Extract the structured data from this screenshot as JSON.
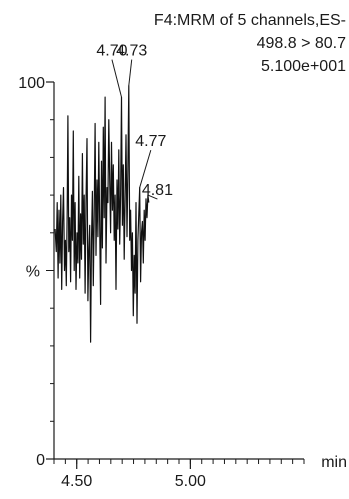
{
  "chart_data": {
    "type": "line",
    "header": {
      "experiment": "F4:MRM of 5 channels,ES-",
      "transition": "498.8 > 80.7",
      "intensity": "5.100e+001"
    },
    "title": "",
    "xlabel": "min",
    "ylabel": "",
    "xlim": [
      4.4,
      5.5
    ],
    "ylim": [
      0,
      100
    ],
    "x_ticks": [
      4.5,
      5.0
    ],
    "x_tick_labels": [
      "4.50",
      "5.00"
    ],
    "y_ticks": [
      0,
      100
    ],
    "y_tick_labels": [
      "0",
      "100"
    ],
    "y_mid_label": "%",
    "grid": false,
    "series": [
      {
        "values": [
          [
            4.405,
            61
          ],
          [
            4.41,
            55
          ],
          [
            4.414,
            68
          ],
          [
            4.418,
            48
          ],
          [
            4.422,
            66
          ],
          [
            4.426,
            52
          ],
          [
            4.43,
            70
          ],
          [
            4.434,
            45
          ],
          [
            4.438,
            63
          ],
          [
            4.442,
            72
          ],
          [
            4.446,
            50
          ],
          [
            4.45,
            58
          ],
          [
            4.454,
            46
          ],
          [
            4.458,
            66
          ],
          [
            4.461,
            91
          ],
          [
            4.465,
            55
          ],
          [
            4.469,
            64
          ],
          [
            4.473,
            47
          ],
          [
            4.477,
            70
          ],
          [
            4.481,
            58
          ],
          [
            4.485,
            87
          ],
          [
            4.489,
            50
          ],
          [
            4.493,
            68
          ],
          [
            4.497,
            45
          ],
          [
            4.501,
            60
          ],
          [
            4.505,
            52
          ],
          [
            4.509,
            75
          ],
          [
            4.513,
            48
          ],
          [
            4.517,
            65
          ],
          [
            4.521,
            53
          ],
          [
            4.525,
            81
          ],
          [
            4.529,
            57
          ],
          [
            4.533,
            70
          ],
          [
            4.537,
            44
          ],
          [
            4.541,
            68
          ],
          [
            4.545,
            85
          ],
          [
            4.549,
            42
          ],
          [
            4.553,
            55
          ],
          [
            4.557,
            62
          ],
          [
            4.561,
            31
          ],
          [
            4.565,
            58
          ],
          [
            4.569,
            71
          ],
          [
            4.573,
            46
          ],
          [
            4.577,
            65
          ],
          [
            4.581,
            89
          ],
          [
            4.585,
            54
          ],
          [
            4.589,
            74
          ],
          [
            4.593,
            59
          ],
          [
            4.597,
            84
          ],
          [
            4.601,
            62
          ],
          [
            4.605,
            41
          ],
          [
            4.609,
            79
          ],
          [
            4.613,
            56
          ],
          [
            4.617,
            88
          ],
          [
            4.621,
            64
          ],
          [
            4.625,
            96
          ],
          [
            4.629,
            52
          ],
          [
            4.633,
            72
          ],
          [
            4.637,
            68
          ],
          [
            4.641,
            90
          ],
          [
            4.645,
            74
          ],
          [
            4.649,
            60
          ],
          [
            4.653,
            84
          ],
          [
            4.657,
            66
          ],
          [
            4.661,
            78
          ],
          [
            4.665,
            58
          ],
          [
            4.669,
            70
          ],
          [
            4.673,
            45
          ],
          [
            4.677,
            74
          ],
          [
            4.681,
            61
          ],
          [
            4.685,
            82
          ],
          [
            4.689,
            57
          ],
          [
            4.693,
            70
          ],
          [
            4.697,
            96
          ],
          [
            4.701,
            62
          ],
          [
            4.705,
            78
          ],
          [
            4.709,
            53
          ],
          [
            4.713,
            69
          ],
          [
            4.717,
            86
          ],
          [
            4.721,
            59
          ],
          [
            4.725,
            77
          ],
          [
            4.729,
            99
          ],
          [
            4.733,
            58
          ],
          [
            4.737,
            66
          ],
          [
            4.741,
            50
          ],
          [
            4.745,
            60
          ],
          [
            4.749,
            38
          ],
          [
            4.753,
            54
          ],
          [
            4.757,
            44
          ],
          [
            4.761,
            68
          ],
          [
            4.765,
            36
          ],
          [
            4.769,
            58
          ],
          [
            4.773,
            65
          ],
          [
            4.777,
            72
          ],
          [
            4.781,
            47
          ],
          [
            4.785,
            60
          ],
          [
            4.789,
            63
          ],
          [
            4.793,
            52
          ],
          [
            4.797,
            66
          ],
          [
            4.801,
            58
          ],
          [
            4.805,
            69
          ],
          [
            4.809,
            64
          ],
          [
            4.813,
            70
          ],
          [
            4.817,
            68
          ]
        ]
      }
    ],
    "peak_labels": [
      {
        "text": "4.70",
        "x": 4.697,
        "y": 96,
        "label_x": 4.655,
        "label_y": 107
      },
      {
        "text": "4.73",
        "x": 4.729,
        "y": 99,
        "label_x": 4.742,
        "label_y": 107
      },
      {
        "text": "4.77",
        "x": 4.777,
        "y": 72,
        "label_x": 4.826,
        "label_y": 83
      },
      {
        "text": "4.81",
        "x": 4.813,
        "y": 70,
        "label_x": 4.855,
        "label_y": 70
      }
    ]
  }
}
